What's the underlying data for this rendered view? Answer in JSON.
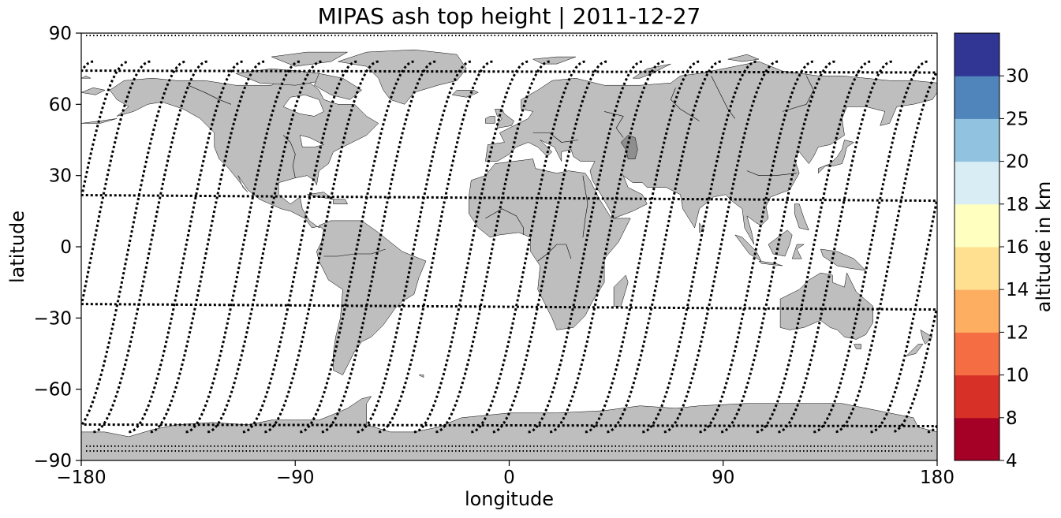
{
  "title": "MIPAS ash top height | 2011-12-27",
  "xlabel": "longitude",
  "ylabel": "latitude",
  "colorbar": {
    "label": "altitude in km",
    "ticks": [
      "4",
      "8",
      "10",
      "12",
      "14",
      "16",
      "18",
      "20",
      "25",
      "30"
    ],
    "bin_edges": [
      4,
      8,
      10,
      12,
      14,
      16,
      18,
      20,
      25,
      30
    ],
    "colors": [
      "#a50026",
      "#d73027",
      "#f46d43",
      "#fdae61",
      "#fee090",
      "#ffffbf",
      "#d8edf4",
      "#91c2df",
      "#4f85bb",
      "#313695"
    ]
  },
  "map": {
    "projection": "plate carree",
    "land_color": "#bebebe",
    "coastline_color": "#000000",
    "track_color": "#000000",
    "xlim": [
      -180,
      180
    ],
    "ylim": [
      -90,
      90
    ],
    "xticks": [
      -180,
      -90,
      0,
      90,
      180
    ],
    "yticks": [
      90,
      60,
      30,
      0,
      -30,
      -60,
      -90
    ],
    "xtick_labels": [
      "−180",
      "−90",
      "0",
      "90",
      "180"
    ],
    "ytick_labels": [
      "90",
      "60",
      "30",
      "0",
      "−30",
      "−60",
      "−90"
    ]
  },
  "chart_data": {
    "type": "scatter",
    "title": "MIPAS ash top height | 2011-12-27",
    "xlabel": "longitude",
    "ylabel": "latitude",
    "xlim": [
      -180,
      180
    ],
    "ylim": [
      -90,
      90
    ],
    "series": [
      {
        "marker": "satellite measurement locations (descending-orbit tracks, every 24°)",
        "tracks_desc_lon_at_equator": [
          -175,
          -151,
          -127,
          -103,
          -79,
          -55,
          -31,
          -7,
          17,
          41,
          65,
          89,
          113,
          137,
          161
        ]
      },
      {
        "marker": "satellite measurement locations (ascending-orbit tracks, every 24°)",
        "tracks_asc_lon_at_equator": [
          -160,
          -136,
          -112,
          -88,
          -64,
          -40,
          -16,
          8,
          32,
          56,
          80,
          104,
          128,
          152,
          176
        ]
      }
    ],
    "ash_detections": []
  }
}
